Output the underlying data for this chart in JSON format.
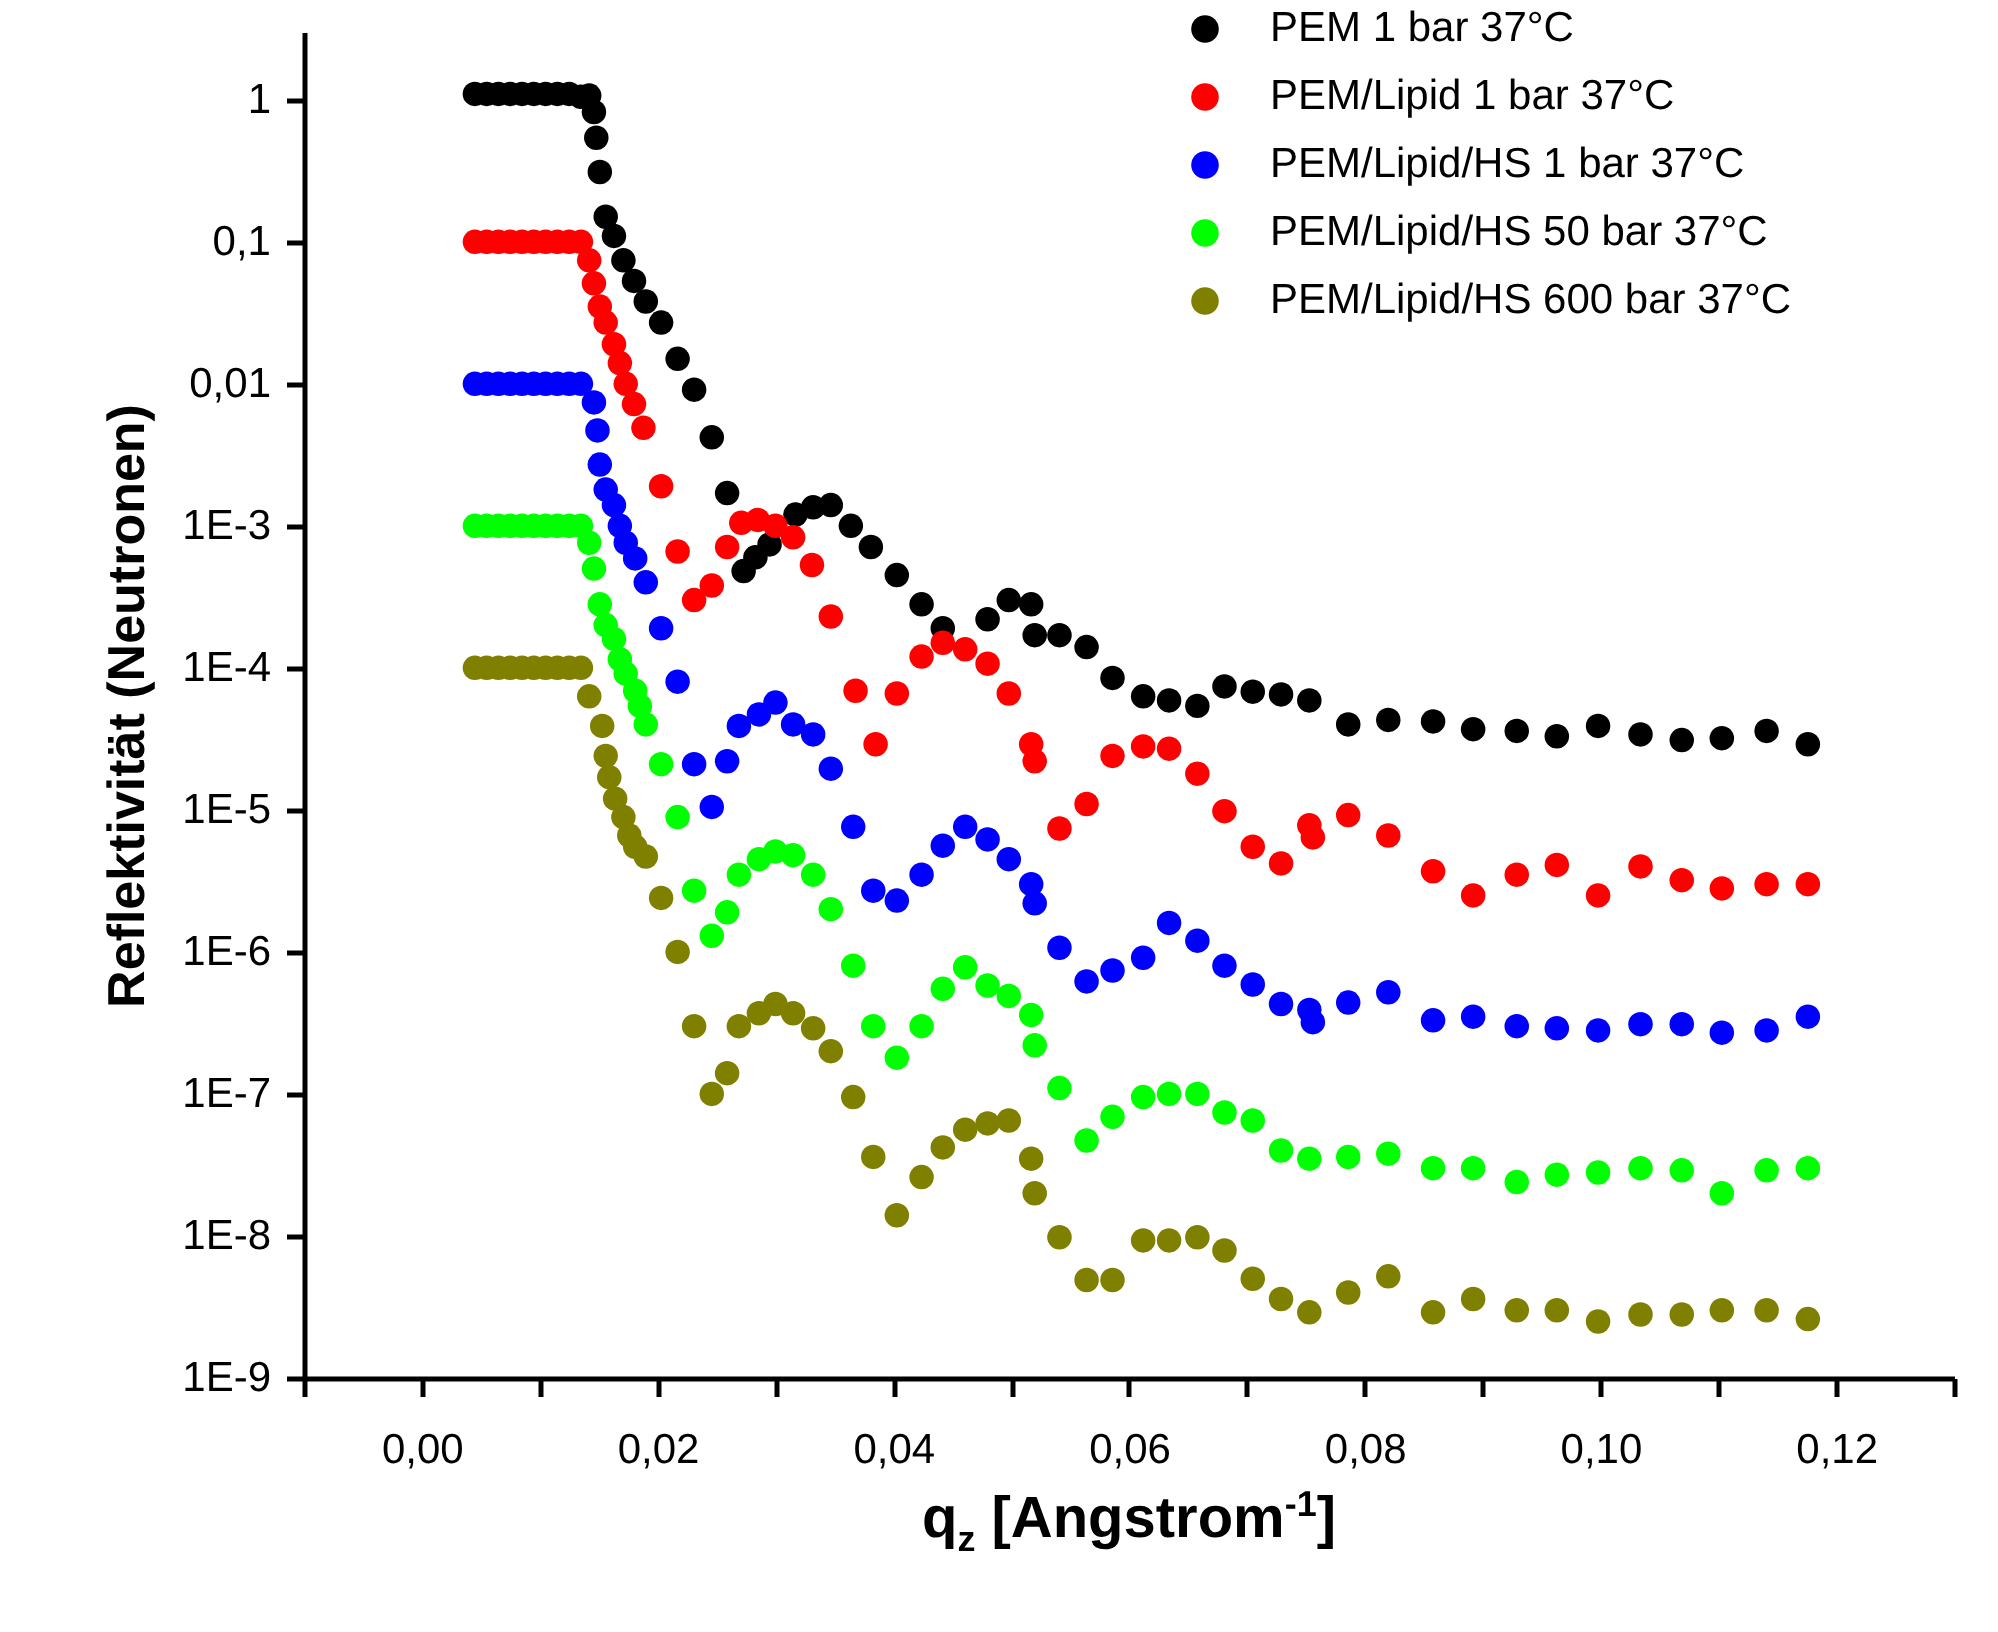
{
  "chart_data": {
    "type": "scatter",
    "xlabel": "q$_{z}$ [Angstrom$^{-1}$]",
    "ylabel": "Reflektivität (Neutronen)",
    "log": "y",
    "marker": "circle",
    "legend": "top right",
    "xlim": [
      -0.01,
      0.13
    ],
    "xticks": [
      {
        "value": -0.01,
        "label": null
      },
      {
        "value": 0,
        "label": "0,00"
      },
      {
        "value": 0.01,
        "label": null
      },
      {
        "value": 0.02,
        "label": "0,02"
      },
      {
        "value": 0.03,
        "label": null
      },
      {
        "value": 0.04,
        "label": "0,04"
      },
      {
        "value": 0.05,
        "label": null
      },
      {
        "value": 0.06,
        "label": "0,06"
      },
      {
        "value": 0.07,
        "label": null
      },
      {
        "value": 0.08,
        "label": "0,08"
      },
      {
        "value": 0.09,
        "label": null
      },
      {
        "value": 0.1,
        "label": "0,10"
      },
      {
        "value": 0.11,
        "label": null
      },
      {
        "value": 0.12,
        "label": "0,12"
      },
      {
        "value": 0.13,
        "label": null
      }
    ],
    "ylim": [
      1e-09,
      3
    ],
    "yticks": [
      {
        "value": 1e-09,
        "label": "1E-9"
      },
      {
        "value": 1e-08,
        "label": "1E-8"
      },
      {
        "value": 1e-07,
        "label": "1E-7"
      },
      {
        "value": 1e-06,
        "label": "1E-6"
      },
      {
        "value": 1e-05,
        "label": "1E-5"
      },
      {
        "value": 0.0001,
        "label": "1E-4"
      },
      {
        "value": 0.001,
        "label": "1E-3"
      },
      {
        "value": 0.01,
        "label": "0,01"
      },
      {
        "value": 0.1,
        "label": "0,1"
      },
      1
    ],
    "series": [
      {
        "name": "PEM 1 bar 37°C",
        "color": "#000000",
        "x": [
          0.0045,
          0.0055,
          0.0065,
          0.0075,
          0.0085,
          0.0095,
          0.0105,
          0.0115,
          0.0125,
          0.0135,
          0.0142,
          0.0146,
          0.0148,
          0.0151,
          0.0156,
          0.0163,
          0.0171,
          0.018,
          0.019,
          0.0203,
          0.0217,
          0.0231,
          0.0246,
          0.0259,
          0.0273,
          0.0283,
          0.0295,
          0.0317,
          0.0332,
          0.0347,
          0.0364,
          0.0381,
          0.0403,
          0.0424,
          0.0442,
          0.048,
          0.0498,
          0.0517,
          0.052,
          0.0541,
          0.0564,
          0.0586,
          0.0612,
          0.0634,
          0.0658,
          0.0681,
          0.0705,
          0.0729,
          0.0753,
          0.0786,
          0.082,
          0.0858,
          0.0892,
          0.0929,
          0.0963,
          0.0998,
          0.1034,
          0.1069,
          0.1103,
          0.1141,
          0.1176
        ],
        "values": [
          1.1,
          1.1,
          1.1,
          1.1,
          1.1,
          1.1,
          1.1,
          1.1,
          1.1,
          1.05,
          1.07,
          0.82,
          0.54,
          0.31,
          0.15,
          0.11,
          0.074,
          0.053,
          0.038,
          0.027,
          0.015,
          0.0091,
          0.0042,
          0.0017,
          0.00048,
          0.0006,
          0.00074,
          0.0012,
          0.00135,
          0.0014,
          0.001,
          0.00071,
          0.00045,
          0.00028,
          0.00019,
          0.00022,
          0.0003,
          0.00028,
          0.00017,
          0.00017,
          0.00014,
          8.5e-05,
          6.3e-05,
          5.9e-05,
          5.4e-05,
          7.4e-05,
          6.8e-05,
          6.5e-05,
          5.9e-05,
          4e-05,
          4.3e-05,
          4.2e-05,
          3.7e-05,
          3.6e-05,
          3.3e-05,
          3.9e-05,
          3.4e-05,
          3.1e-05,
          3.2e-05,
          3.6e-05,
          2.9e-05
        ]
      },
      {
        "name": "PEM/Lipid 1 bar 37°C",
        "color": "#ff0000",
        "x": [
          0.0045,
          0.0055,
          0.0065,
          0.0075,
          0.0085,
          0.0095,
          0.0105,
          0.0115,
          0.0125,
          0.0135,
          0.0142,
          0.0146,
          0.0151,
          0.0156,
          0.0163,
          0.0168,
          0.0173,
          0.018,
          0.0188,
          0.0203,
          0.0217,
          0.0231,
          0.0246,
          0.0259,
          0.0271,
          0.0285,
          0.03,
          0.0315,
          0.0331,
          0.0347,
          0.0368,
          0.0385,
          0.0403,
          0.0424,
          0.0442,
          0.0461,
          0.048,
          0.0498,
          0.0517,
          0.052,
          0.0541,
          0.0564,
          0.0586,
          0.0612,
          0.0634,
          0.0658,
          0.0681,
          0.0705,
          0.0729,
          0.0753,
          0.0756,
          0.0786,
          0.082,
          0.0858,
          0.0892,
          0.0929,
          0.0963,
          0.0998,
          0.1034,
          0.1069,
          0.1103,
          0.1141,
          0.1176
        ],
        "values": [
          0.1,
          0.1,
          0.1,
          0.1,
          0.1,
          0.1,
          0.1,
          0.1,
          0.1,
          0.1,
          0.074,
          0.051,
          0.035,
          0.027,
          0.019,
          0.014,
          0.01,
          0.0072,
          0.0049,
          0.0019,
          0.00066,
          0.0003,
          0.00038,
          0.00071,
          0.00105,
          0.0011,
          0.001,
          0.00083,
          0.00053,
          0.00023,
          6.9e-05,
          2.9e-05,
          6.6e-05,
          0.00012,
          0.00015,
          0.000135,
          0.000107,
          6.6e-05,
          2.9e-05,
          2.2e-05,
          7.4e-06,
          1.1e-05,
          2.4e-05,
          2.8e-05,
          2.7e-05,
          1.8e-05,
          9.8e-06,
          5.5e-06,
          4.2e-06,
          7.8e-06,
          6.4e-06,
          9.2e-06,
          6.6e-06,
          3.7e-06,
          2.5e-06,
          3.5e-06,
          4.1e-06,
          2.5e-06,
          4e-06,
          3.2e-06,
          2.8e-06,
          3e-06,
          3e-06
        ]
      },
      {
        "name": "PEM/Lipid/HS 1 bar 37°C",
        "color": "#0000ff",
        "x": [
          0.0045,
          0.0055,
          0.0065,
          0.0075,
          0.0085,
          0.0095,
          0.0105,
          0.0115,
          0.0125,
          0.0135,
          0.0146,
          0.0149,
          0.0151,
          0.0156,
          0.0163,
          0.0168,
          0.0173,
          0.0181,
          0.019,
          0.0203,
          0.0217,
          0.0231,
          0.0246,
          0.0259,
          0.0269,
          0.0286,
          0.03,
          0.0315,
          0.0332,
          0.0347,
          0.0366,
          0.0383,
          0.0403,
          0.0424,
          0.0442,
          0.0461,
          0.048,
          0.0498,
          0.0517,
          0.052,
          0.0541,
          0.0564,
          0.0586,
          0.0612,
          0.0634,
          0.0658,
          0.0681,
          0.0705,
          0.0729,
          0.0753,
          0.0756,
          0.0786,
          0.082,
          0.0858,
          0.0892,
          0.0929,
          0.0963,
          0.0998,
          0.1034,
          0.1069,
          0.1103,
          0.1141,
          0.1176
        ],
        "values": [
          0.01,
          0.01,
          0.01,
          0.01,
          0.01,
          0.01,
          0.01,
          0.01,
          0.01,
          0.01,
          0.0074,
          0.0047,
          0.0027,
          0.0018,
          0.0014,
          0.001,
          0.00076,
          0.00059,
          0.0004,
          0.00019,
          8e-05,
          2.1e-05,
          1.05e-05,
          2.2e-05,
          3.9e-05,
          4.7e-05,
          5.7e-05,
          4e-05,
          3.4e-05,
          1.95e-05,
          7.6e-06,
          2.7e-06,
          2.3e-06,
          3.5e-06,
          5.6e-06,
          7.6e-06,
          6.2e-06,
          4.5e-06,
          3e-06,
          2.2e-06,
          1.07e-06,
          6.2e-07,
          7.4e-07,
          9.1e-07,
          1.6e-06,
          1.2e-06,
          8e-07,
          5.9e-07,
          4.3e-07,
          3.9e-07,
          3.2e-07,
          4.4e-07,
          5.2e-07,
          3.3e-07,
          3.5e-07,
          3e-07,
          2.9e-07,
          2.8e-07,
          3.1e-07,
          3.1e-07,
          2.7e-07,
          2.8e-07,
          3.5e-07
        ]
      },
      {
        "name": "PEM/Lipid/HS 50 bar 37°C",
        "color": "#00ff00",
        "x": [
          0.0045,
          0.0055,
          0.0065,
          0.0075,
          0.0085,
          0.0095,
          0.0105,
          0.0115,
          0.0125,
          0.0135,
          0.0142,
          0.0146,
          0.0151,
          0.0156,
          0.0163,
          0.0168,
          0.0173,
          0.0181,
          0.0185,
          0.019,
          0.0203,
          0.0217,
          0.0231,
          0.0246,
          0.0259,
          0.0269,
          0.0286,
          0.03,
          0.0315,
          0.0332,
          0.0347,
          0.0366,
          0.0383,
          0.0403,
          0.0424,
          0.0442,
          0.0461,
          0.048,
          0.0498,
          0.0517,
          0.052,
          0.0541,
          0.0564,
          0.0586,
          0.0612,
          0.0634,
          0.0658,
          0.0681,
          0.0705,
          0.0729,
          0.0753,
          0.0786,
          0.082,
          0.0858,
          0.0892,
          0.0929,
          0.0963,
          0.0998,
          0.1034,
          0.1069,
          0.1103,
          0.1141,
          0.1176
        ],
        "values": [
          0.001,
          0.001,
          0.001,
          0.001,
          0.001,
          0.001,
          0.001,
          0.001,
          0.001,
          0.001,
          0.00076,
          0.0005,
          0.00028,
          0.0002,
          0.00016,
          0.000115,
          9.1e-05,
          6.9e-05,
          5.4e-05,
          4e-05,
          2.1e-05,
          8.9e-06,
          2.7e-06,
          1.3e-06,
          1.9e-06,
          3.5e-06,
          4.5e-06,
          5.1e-06,
          4.8e-06,
          3.5e-06,
          2e-06,
          8e-07,
          3e-07,
          1.8e-07,
          3e-07,
          5.5e-07,
          7.8e-07,
          5.8e-07,
          4.9e-07,
          3.6e-07,
          2.2e-07,
          1.1e-07,
          4.7e-08,
          6.9e-08,
          9.5e-08,
          1e-07,
          1e-07,
          7.4e-08,
          6.5e-08,
          4e-08,
          3.5e-08,
          3.6e-08,
          3.8e-08,
          3e-08,
          3e-08,
          2.4e-08,
          2.7e-08,
          2.8e-08,
          3e-08,
          2.9e-08,
          2e-08,
          2.9e-08,
          3e-08
        ]
      },
      {
        "name": "PEM/Lipid/HS 600 bar 37°C",
        "color": "#808000",
        "x": [
          0.0045,
          0.0055,
          0.0065,
          0.0075,
          0.0085,
          0.0095,
          0.0105,
          0.0115,
          0.0125,
          0.0135,
          0.0142,
          0.0153,
          0.0156,
          0.0159,
          0.0164,
          0.0171,
          0.0176,
          0.0181,
          0.019,
          0.0203,
          0.0217,
          0.0231,
          0.0246,
          0.0259,
          0.0269,
          0.0286,
          0.03,
          0.0315,
          0.0332,
          0.0347,
          0.0366,
          0.0383,
          0.0403,
          0.0424,
          0.0442,
          0.0461,
          0.048,
          0.0498,
          0.0517,
          0.052,
          0.0541,
          0.0564,
          0.0586,
          0.0612,
          0.0634,
          0.0658,
          0.0681,
          0.0705,
          0.0729,
          0.0753,
          0.0786,
          0.082,
          0.0858,
          0.0892,
          0.0929,
          0.0963,
          0.0998,
          0.1034,
          0.1069,
          0.1103,
          0.1141,
          0.1176
        ],
        "values": [
          0.0001,
          0.0001,
          0.0001,
          0.0001,
          0.0001,
          0.0001,
          0.0001,
          0.0001,
          0.0001,
          0.0001,
          6.3e-05,
          3.9e-05,
          2.4e-05,
          1.7e-05,
          1.2e-05,
          8.9e-06,
          6.6e-06,
          5.5e-06,
          4.7e-06,
          2.4e-06,
          1e-06,
          3e-07,
          1e-07,
          1.4e-07,
          3e-07,
          3.7e-07,
          4.3e-07,
          3.7e-07,
          2.9e-07,
          2e-07,
          9.5e-08,
          3.6e-08,
          1.4e-08,
          2.6e-08,
          4.2e-08,
          5.6e-08,
          6.2e-08,
          6.5e-08,
          3.5e-08,
          2e-08,
          9.8e-09,
          4.9e-09,
          4.9e-09,
          9.3e-09,
          9.3e-09,
          9.8e-09,
          7.9e-09,
          5e-09,
          3.6e-09,
          2.9e-09,
          4e-09,
          5.2e-09,
          2.9e-09,
          3.6e-09,
          3e-09,
          3e-09,
          2.5e-09,
          2.8e-09,
          2.8e-09,
          3e-09,
          3e-09,
          2.6e-09
        ]
      }
    ]
  }
}
